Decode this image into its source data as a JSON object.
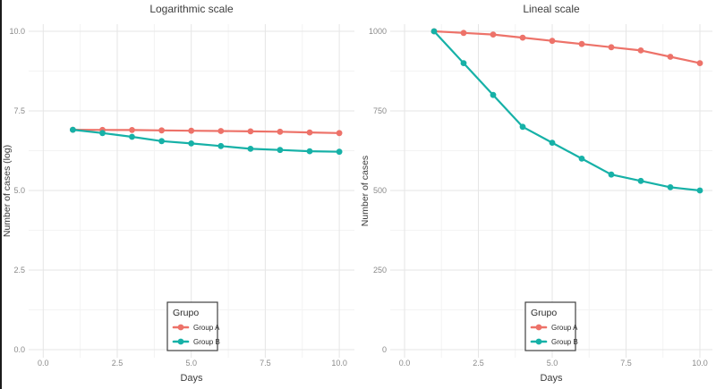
{
  "figure": {
    "background": "#ffffff",
    "left_edge_color": "#1a1a1a"
  },
  "colors": {
    "group_a": "#ED7269",
    "group_b": "#16B1A7",
    "grid_major": "#e6e6e6",
    "grid_minor": "#f3f3f3",
    "tick_text": "#8a8a8a",
    "title_text": "#3d3d3d",
    "legend_text": "#2b2b2b",
    "legend_border": "#404040"
  },
  "legend": {
    "title": "Grupo",
    "items": [
      {
        "label": "Group A",
        "color": "#ED7269"
      },
      {
        "label": "Group B",
        "color": "#16B1A7"
      }
    ]
  },
  "chart_data": [
    {
      "type": "line",
      "title": "Logarithmic scale",
      "xlabel": "Days",
      "ylabel": "Number of cases (log)",
      "x": [
        1,
        2,
        3,
        4,
        5,
        6,
        7,
        8,
        9,
        10
      ],
      "series": [
        {
          "name": "Group A",
          "color": "#ED7269",
          "values": [
            6.908,
            6.903,
            6.898,
            6.888,
            6.877,
            6.867,
            6.856,
            6.846,
            6.824,
            6.802
          ]
        },
        {
          "name": "Group B",
          "color": "#16B1A7",
          "values": [
            6.908,
            6.802,
            6.685,
            6.551,
            6.477,
            6.397,
            6.31,
            6.273,
            6.234,
            6.215
          ]
        }
      ],
      "xlim": [
        0,
        10
      ],
      "ylim": [
        0,
        10
      ],
      "xticks": [
        0,
        2.5,
        5,
        7.5,
        10
      ],
      "yticks": [
        0,
        2.5,
        5,
        7.5,
        10
      ],
      "xtick_labels": [
        "0.0",
        "2.5",
        "5.0",
        "7.5",
        "10.0"
      ],
      "ytick_labels": [
        "0.0",
        "2.5",
        "5.0",
        "7.5",
        "10.0"
      ],
      "grid": true,
      "legend_position": "inside-bottom-center"
    },
    {
      "type": "line",
      "title": "Lineal scale",
      "xlabel": "Days",
      "ylabel": "Number of cases",
      "x": [
        1,
        2,
        3,
        4,
        5,
        6,
        7,
        8,
        9,
        10
      ],
      "series": [
        {
          "name": "Group A",
          "color": "#ED7269",
          "values": [
            1000,
            995,
            990,
            980,
            970,
            960,
            950,
            940,
            920,
            900
          ]
        },
        {
          "name": "Group B",
          "color": "#16B1A7",
          "values": [
            1000,
            900,
            800,
            700,
            650,
            600,
            550,
            530,
            510,
            500
          ]
        }
      ],
      "xlim": [
        0,
        10
      ],
      "ylim": [
        0,
        1000
      ],
      "xticks": [
        0,
        2.5,
        5,
        7.5,
        10
      ],
      "yticks": [
        0,
        250,
        500,
        750,
        1000
      ],
      "xtick_labels": [
        "0.0",
        "2.5",
        "5.0",
        "7.5",
        "10.0"
      ],
      "ytick_labels": [
        "0",
        "250",
        "500",
        "750",
        "1000"
      ],
      "grid": true,
      "legend_position": "inside-bottom-center"
    }
  ]
}
